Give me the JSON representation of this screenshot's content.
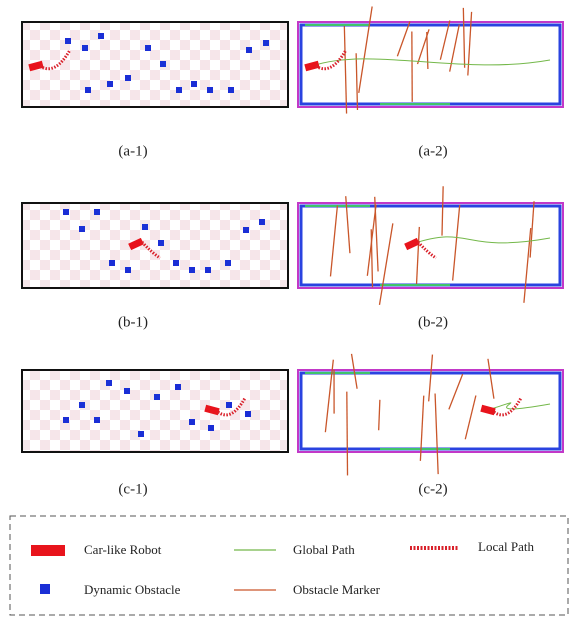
{
  "captions": [
    "(a-1)",
    "(a-2)",
    "(b-1)",
    "(b-2)",
    "(c-1)",
    "(c-2)"
  ],
  "legend": [
    "Car-like Robot",
    "Global Path",
    "Local Path",
    "Dynamic Obstacle",
    "Obstacle Marker"
  ]
}
